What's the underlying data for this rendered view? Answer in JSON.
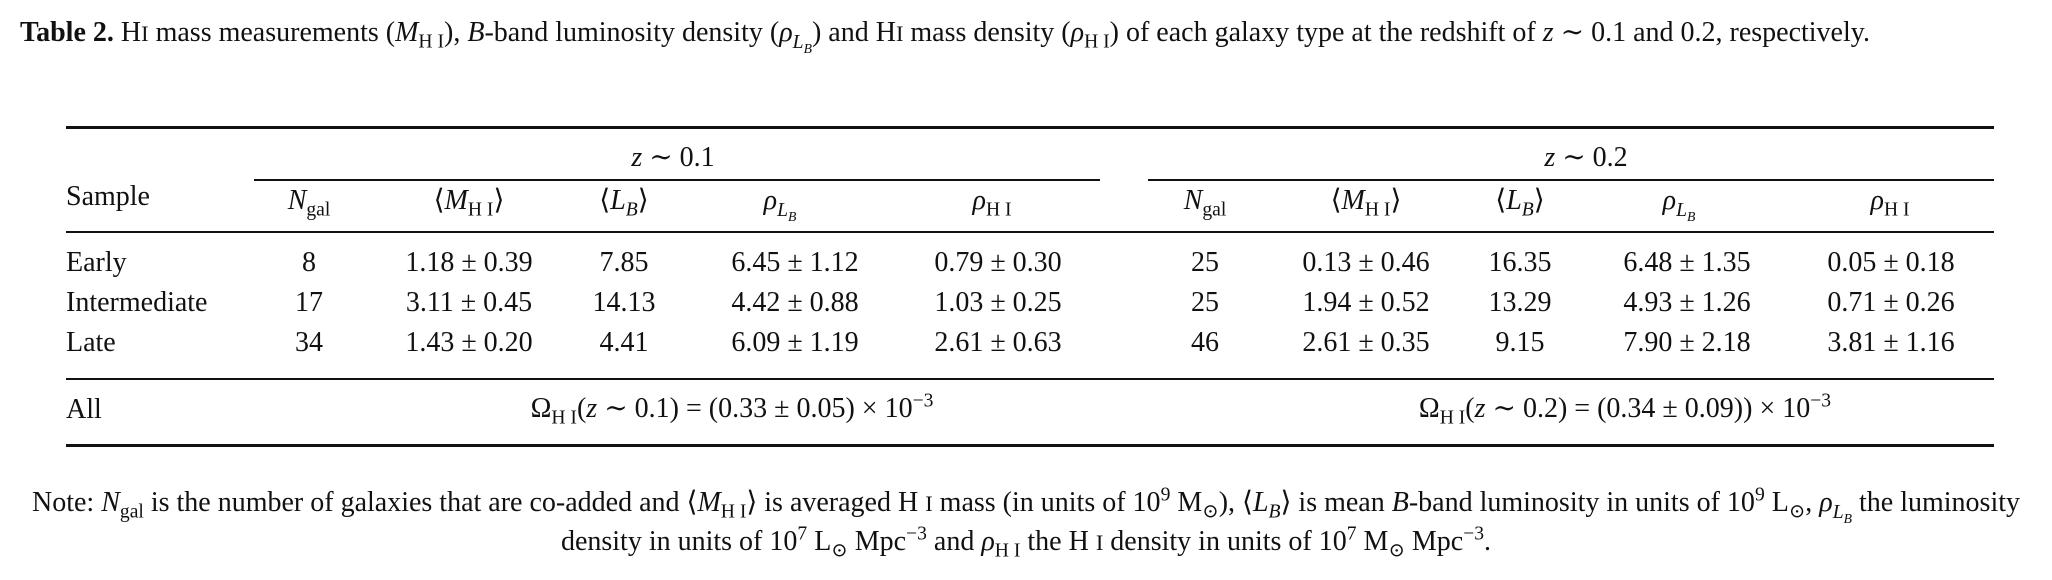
{
  "caption": {
    "label": "Table 2.",
    "text_parts": [
      "H",
      "I",
      " mass measurements (",
      "M",
      "H I",
      "), ",
      "B",
      "-band luminosity density (",
      "ρ",
      "L",
      "B",
      ") and H",
      "I",
      " mass density (",
      "ρ",
      "H I",
      ") of each galaxy type at the redshift of ",
      "z",
      " ∼ 0.1 and 0.2, respectively."
    ]
  },
  "table": {
    "group_headers": [
      "z ∼ 0.1",
      "z ∼ 0.2"
    ],
    "sample_header": "Sample",
    "col_headers": [
      "Ngal",
      "⟨MH I⟩",
      "⟨LB⟩",
      "ρLB",
      "ρH I"
    ],
    "rows": [
      {
        "sample": "Early",
        "z01": [
          "8",
          "1.18 ± 0.39",
          "7.85",
          "6.45 ± 1.12",
          "0.79 ± 0.30"
        ],
        "z02": [
          "25",
          "0.13 ± 0.46",
          "16.35",
          "6.48 ± 1.35",
          "0.05 ± 0.18"
        ]
      },
      {
        "sample": "Intermediate",
        "z01": [
          "17",
          "3.11 ± 0.45",
          "14.13",
          "4.42 ± 0.88",
          "1.03 ± 0.25"
        ],
        "z02": [
          "25",
          "1.94 ± 0.52",
          "13.29",
          "4.93 ± 1.26",
          "0.71 ± 0.26"
        ]
      },
      {
        "sample": "Late",
        "z01": [
          "34",
          "1.43 ± 0.20",
          "4.41",
          "6.09 ± 1.19",
          "2.61 ± 0.63"
        ],
        "z02": [
          "46",
          "2.61 ± 0.35",
          "9.15",
          "7.90 ± 2.18",
          "3.81 ± 1.16"
        ]
      }
    ],
    "all_label": "All",
    "omega_z01": "ΩH I(z ∼ 0.1) = (0.33 ± 0.05) × 10−3",
    "omega_z02": "ΩH I(z ∼ 0.2) = (0.34 ± 0.09)) × 10−3"
  },
  "note": "Note: Ngal is the number of galaxies that are co-added and ⟨MH I⟩ is averaged H I mass (in units of 109 M⊙), ⟨LB⟩ is mean B-band luminosity in units of 109 L⊙, ρLB the luminosity density in units of 107 L⊙ Mpc−3 and ρH I the H I density in units of 107 M⊙ Mpc−3."
}
